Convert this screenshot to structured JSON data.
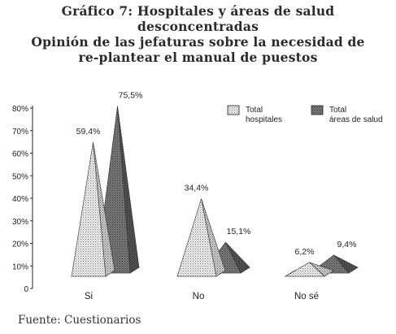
{
  "figure": {
    "title_lines": [
      "Gráfico 7:  Hospitales y áreas de salud",
      "desconcentradas",
      "Opinión de las jefaturas sobre la necesidad de",
      "re-plantear el manual de puestos"
    ],
    "source": "Fuente: Cuestionarios"
  },
  "colors": {
    "hospitales": "#dcdcdc",
    "areas": "#6e6e6e",
    "text": "#222222"
  },
  "chart_data": {
    "type": "bar",
    "style": "3d-pyramid",
    "categories": [
      "Si",
      "No",
      "No sé"
    ],
    "series": [
      {
        "name": "Total hospitales",
        "values": [
          59.4,
          34.4,
          6.2
        ],
        "labels": [
          "59,4%",
          "34,4%",
          "6,2%"
        ]
      },
      {
        "name": "Total áreas de salud",
        "values": [
          75.5,
          15.1,
          9.4
        ],
        "labels": [
          "75,5%",
          "15,1%",
          "9,4%"
        ]
      }
    ],
    "yticks": [
      "0",
      "10%",
      "20%",
      "30%",
      "40%",
      "50%",
      "60%",
      "70%",
      "80%"
    ],
    "ylim": [
      0,
      80
    ],
    "grid": false,
    "legend": "top-right",
    "legend_labels": [
      [
        "Total",
        "hospitales"
      ],
      [
        "Total",
        "áreas de salud"
      ]
    ]
  }
}
